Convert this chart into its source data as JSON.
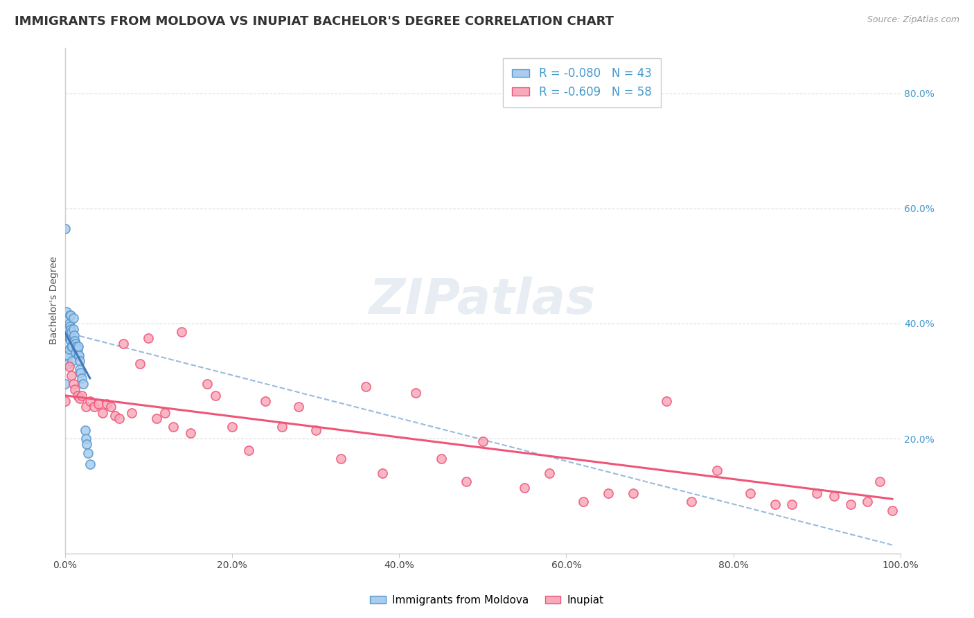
{
  "title": "IMMIGRANTS FROM MOLDOVA VS INUPIAT BACHELOR'S DEGREE CORRELATION CHART",
  "source": "Source: ZipAtlas.com",
  "ylabel": "Bachelor's Degree",
  "xlim": [
    0.0,
    1.0
  ],
  "ylim": [
    0.0,
    0.88
  ],
  "xtick_labels": [
    "0.0%",
    "20.0%",
    "40.0%",
    "60.0%",
    "80.0%",
    "100.0%"
  ],
  "xtick_values": [
    0.0,
    0.2,
    0.4,
    0.6,
    0.8,
    1.0
  ],
  "ytick_labels": [
    "20.0%",
    "40.0%",
    "60.0%",
    "80.0%"
  ],
  "ytick_values": [
    0.2,
    0.4,
    0.6,
    0.8
  ],
  "blue_color": "#aaccee",
  "pink_color": "#f8aabb",
  "blue_edge_color": "#5599cc",
  "pink_edge_color": "#ee5577",
  "blue_line_color": "#4477bb",
  "pink_line_color": "#ee5577",
  "dashed_line_color": "#99bbdd",
  "grid_color": "#cccccc",
  "background_color": "#ffffff",
  "title_fontsize": 13,
  "tick_fontsize": 10,
  "source_fontsize": 9,
  "ylabel_fontsize": 10,
  "legend_fontsize": 12,
  "watermark_text": "ZIPatlas",
  "bottom_legend_labels": [
    "Immigrants from Moldova",
    "Inupiat"
  ],
  "blue_scatter_x": [
    0.0,
    0.0,
    0.0,
    0.002,
    0.002,
    0.003,
    0.004,
    0.004,
    0.005,
    0.005,
    0.005,
    0.006,
    0.006,
    0.006,
    0.007,
    0.007,
    0.007,
    0.008,
    0.008,
    0.009,
    0.009,
    0.01,
    0.01,
    0.01,
    0.011,
    0.012,
    0.013,
    0.013,
    0.014,
    0.015,
    0.016,
    0.016,
    0.017,
    0.018,
    0.018,
    0.019,
    0.02,
    0.022,
    0.024,
    0.025,
    0.026,
    0.028,
    0.03
  ],
  "blue_scatter_y": [
    0.565,
    0.38,
    0.295,
    0.42,
    0.385,
    0.345,
    0.345,
    0.33,
    0.4,
    0.375,
    0.355,
    0.415,
    0.395,
    0.375,
    0.415,
    0.39,
    0.37,
    0.385,
    0.36,
    0.36,
    0.335,
    0.41,
    0.39,
    0.37,
    0.38,
    0.37,
    0.365,
    0.35,
    0.36,
    0.355,
    0.36,
    0.345,
    0.345,
    0.335,
    0.32,
    0.315,
    0.305,
    0.295,
    0.215,
    0.2,
    0.19,
    0.175,
    0.155
  ],
  "pink_scatter_x": [
    0.0,
    0.005,
    0.008,
    0.01,
    0.012,
    0.015,
    0.018,
    0.02,
    0.025,
    0.03,
    0.035,
    0.04,
    0.045,
    0.05,
    0.055,
    0.06,
    0.065,
    0.07,
    0.08,
    0.09,
    0.1,
    0.11,
    0.12,
    0.13,
    0.14,
    0.15,
    0.17,
    0.18,
    0.2,
    0.22,
    0.24,
    0.26,
    0.28,
    0.3,
    0.33,
    0.36,
    0.38,
    0.42,
    0.45,
    0.48,
    0.5,
    0.55,
    0.58,
    0.62,
    0.65,
    0.68,
    0.72,
    0.75,
    0.78,
    0.82,
    0.85,
    0.87,
    0.9,
    0.92,
    0.94,
    0.96,
    0.975,
    0.99
  ],
  "pink_scatter_y": [
    0.265,
    0.325,
    0.31,
    0.295,
    0.285,
    0.275,
    0.27,
    0.275,
    0.255,
    0.265,
    0.255,
    0.26,
    0.245,
    0.26,
    0.255,
    0.24,
    0.235,
    0.365,
    0.245,
    0.33,
    0.375,
    0.235,
    0.245,
    0.22,
    0.385,
    0.21,
    0.295,
    0.275,
    0.22,
    0.18,
    0.265,
    0.22,
    0.255,
    0.215,
    0.165,
    0.29,
    0.14,
    0.28,
    0.165,
    0.125,
    0.195,
    0.115,
    0.14,
    0.09,
    0.105,
    0.105,
    0.265,
    0.09,
    0.145,
    0.105,
    0.085,
    0.085,
    0.105,
    0.1,
    0.085,
    0.09,
    0.125,
    0.075
  ],
  "blue_line_x": [
    0.0,
    0.03
  ],
  "blue_line_y": [
    0.385,
    0.305
  ],
  "pink_line_x": [
    0.0,
    0.99
  ],
  "pink_line_y": [
    0.275,
    0.095
  ],
  "dashed_line_x": [
    0.0,
    0.99
  ],
  "dashed_line_y": [
    0.385,
    0.015
  ]
}
